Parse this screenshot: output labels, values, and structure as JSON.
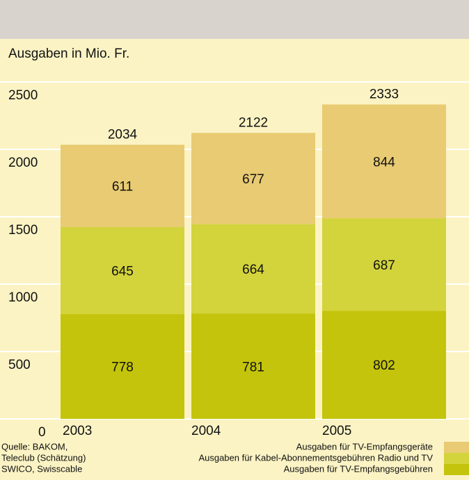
{
  "chart_data": {
    "type": "stacked_bar",
    "y_label": "Ausgaben in Mio. Fr.",
    "categories": [
      "2003",
      "2004",
      "2005"
    ],
    "series": [
      {
        "name": "Ausgaben für TV-Empfangsgebühren",
        "color": "#c4c40c",
        "values": [
          778,
          781,
          802
        ]
      },
      {
        "name": "Ausgaben für Kabel-Abonnementsgebühren Radio und TV",
        "color": "#d3d33c",
        "values": [
          645,
          664,
          687
        ]
      },
      {
        "name": "Ausgaben für TV-Empfangsgeräte",
        "color": "#e8cb72",
        "values": [
          611,
          677,
          844
        ]
      }
    ],
    "totals": [
      2034,
      2122,
      2333
    ],
    "ylim": [
      0,
      2500
    ],
    "yticks": [
      0,
      500,
      1000,
      1500,
      2000,
      2500
    ],
    "grid": true,
    "source": [
      "Quelle: BAKOM,",
      "Teleclub (Schätzung)",
      "SWICO, Swisscable"
    ]
  }
}
